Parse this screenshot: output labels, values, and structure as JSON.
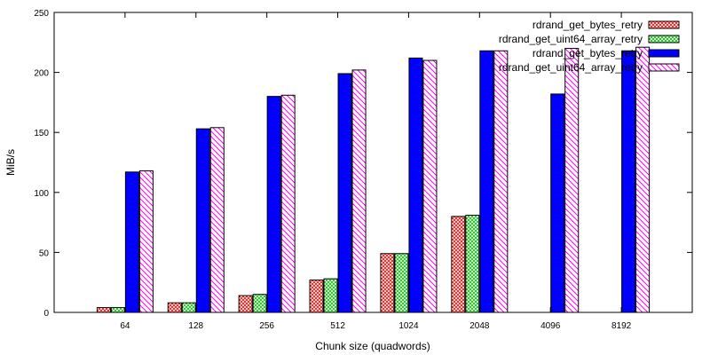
{
  "chart_data": {
    "type": "bar",
    "xlabel": "Chunk size (quadwords)",
    "ylabel": "MiB/s",
    "ylim": [
      0,
      250
    ],
    "yticks": [
      0,
      50,
      100,
      150,
      200,
      250
    ],
    "categories": [
      "64",
      "128",
      "256",
      "512",
      "1024",
      "2048",
      "4096",
      "8192"
    ],
    "legend_position": "top-right",
    "series": [
      {
        "name": "rdrand_get_bytes_retry",
        "values": [
          4,
          8,
          14,
          27,
          49,
          80,
          null,
          null
        ],
        "color": "#ff0000",
        "fill": "crosshatch"
      },
      {
        "name": "rdrand_get_uint64_array_retry",
        "values": [
          4,
          8,
          15,
          28,
          49,
          81,
          null,
          null
        ],
        "color": "#00c000",
        "fill": "crosshatch"
      },
      {
        "name": "rdrand_get_bytes_retry",
        "values": [
          117,
          153,
          180,
          199,
          212,
          218,
          182,
          218
        ],
        "color": "#0000ff",
        "fill": "solid"
      },
      {
        "name": "rdrand_get_uint64_array_retry",
        "values": [
          118,
          154,
          181,
          202,
          210,
          218,
          220,
          221
        ],
        "color": "#ff00ff",
        "fill": "hatch"
      }
    ]
  }
}
